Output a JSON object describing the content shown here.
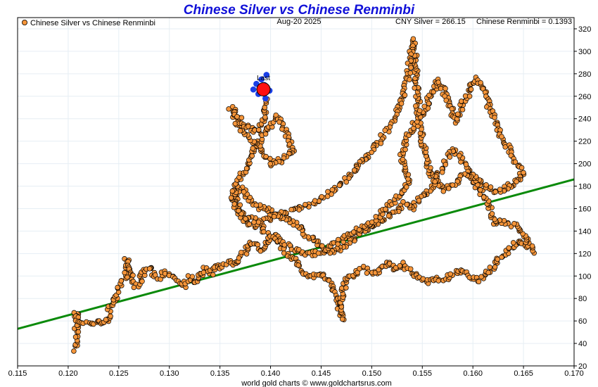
{
  "chart_data": {
    "type": "scatter",
    "title": "Chinese Silver vs Chinese Renminbi",
    "date": "Aug-20  2025",
    "legend": "Chinese Silver vs Chinese Renminbi",
    "legend_position": "top-left",
    "readouts": {
      "cny_silver": "CNY Silver = 266.15",
      "renminbi": "Chinese Renminbi = 0.1393"
    },
    "last_label": "Last",
    "footer": "world gold charts © www.goldchartsrus.com",
    "xlim": [
      0.115,
      0.17
    ],
    "ylim": [
      20,
      330
    ],
    "x_ticks": [
      "0.115",
      "0.120",
      "0.125",
      "0.130",
      "0.135",
      "0.140",
      "0.145",
      "0.150",
      "0.155",
      "0.160",
      "0.165",
      "0.170"
    ],
    "y_ticks": [
      "20",
      "40",
      "60",
      "80",
      "100",
      "120",
      "140",
      "160",
      "180",
      "200",
      "220",
      "240",
      "260",
      "280",
      "300",
      "320"
    ],
    "grid": true,
    "colors": {
      "points": "#f5953a",
      "point_edge": "#000000",
      "line": "#f5953a",
      "trend": "#0a8a0a",
      "recent": "#1a3fe6",
      "last": "#ff1010",
      "title": "#1010d8"
    },
    "trendline": {
      "x": [
        0.115,
        0.17
      ],
      "y": [
        53,
        186
      ]
    },
    "last_point": {
      "x": 0.1393,
      "y": 266.15
    },
    "recent_path": [
      [
        0.1395,
        258
      ],
      [
        0.1388,
        262
      ],
      [
        0.1383,
        266
      ],
      [
        0.1386,
        271
      ],
      [
        0.1391,
        275
      ],
      [
        0.1396,
        279
      ],
      [
        0.1394,
        270
      ],
      [
        0.1399,
        265
      ],
      [
        0.1393,
        266
      ]
    ],
    "path": [
      [
        0.1208,
        35
      ],
      [
        0.1208,
        45
      ],
      [
        0.1208,
        55
      ],
      [
        0.1208,
        63
      ],
      [
        0.1208,
        68
      ],
      [
        0.1208,
        58
      ],
      [
        0.1225,
        58
      ],
      [
        0.1233,
        60
      ],
      [
        0.1237,
        57
      ],
      [
        0.124,
        66
      ],
      [
        0.1243,
        74
      ],
      [
        0.1248,
        82
      ],
      [
        0.1251,
        91
      ],
      [
        0.1255,
        98
      ],
      [
        0.1258,
        107
      ],
      [
        0.1257,
        116
      ],
      [
        0.1262,
        100
      ],
      [
        0.1267,
        91
      ],
      [
        0.1272,
        97
      ],
      [
        0.1276,
        104
      ],
      [
        0.1281,
        108
      ],
      [
        0.1286,
        100
      ],
      [
        0.1291,
        97
      ],
      [
        0.1297,
        104
      ],
      [
        0.1303,
        100
      ],
      [
        0.1308,
        96
      ],
      [
        0.1314,
        92
      ],
      [
        0.132,
        99
      ],
      [
        0.1325,
        94
      ],
      [
        0.133,
        101
      ],
      [
        0.1336,
        106
      ],
      [
        0.1341,
        102
      ],
      [
        0.1346,
        110
      ],
      [
        0.1352,
        107
      ],
      [
        0.1357,
        112
      ],
      [
        0.1363,
        110
      ],
      [
        0.1368,
        116
      ],
      [
        0.1373,
        120
      ],
      [
        0.1378,
        125
      ],
      [
        0.1384,
        130
      ],
      [
        0.1391,
        122
      ],
      [
        0.1397,
        128
      ],
      [
        0.1404,
        136
      ],
      [
        0.1411,
        126
      ],
      [
        0.1418,
        118
      ],
      [
        0.1426,
        112
      ],
      [
        0.1432,
        103
      ],
      [
        0.144,
        99
      ],
      [
        0.1447,
        102
      ],
      [
        0.1452,
        100
      ],
      [
        0.1457,
        96
      ],
      [
        0.1462,
        92
      ],
      [
        0.1465,
        80
      ],
      [
        0.1468,
        70
      ],
      [
        0.1471,
        62
      ],
      [
        0.1468,
        75
      ],
      [
        0.1472,
        88
      ],
      [
        0.1477,
        100
      ],
      [
        0.1485,
        103
      ],
      [
        0.1493,
        107
      ],
      [
        0.1502,
        101
      ],
      [
        0.151,
        107
      ],
      [
        0.1517,
        113
      ],
      [
        0.1524,
        105
      ],
      [
        0.1531,
        110
      ],
      [
        0.1538,
        103
      ],
      [
        0.1546,
        99
      ],
      [
        0.1555,
        95
      ],
      [
        0.1564,
        99
      ],
      [
        0.1572,
        96
      ],
      [
        0.158,
        102
      ],
      [
        0.1589,
        106
      ],
      [
        0.1597,
        99
      ],
      [
        0.1606,
        96
      ],
      [
        0.1614,
        102
      ],
      [
        0.162,
        107
      ],
      [
        0.1626,
        115
      ],
      [
        0.1633,
        121
      ],
      [
        0.164,
        127
      ],
      [
        0.1646,
        132
      ],
      [
        0.1652,
        128
      ],
      [
        0.1659,
        122
      ],
      [
        0.1653,
        133
      ],
      [
        0.1646,
        142
      ],
      [
        0.1637,
        146
      ],
      [
        0.1629,
        149
      ],
      [
        0.1621,
        146
      ],
      [
        0.1618,
        156
      ],
      [
        0.1614,
        166
      ],
      [
        0.1607,
        176
      ],
      [
        0.16,
        186
      ],
      [
        0.1594,
        196
      ],
      [
        0.1588,
        206
      ],
      [
        0.1581,
        213
      ],
      [
        0.1574,
        203
      ],
      [
        0.1567,
        192
      ],
      [
        0.156,
        181
      ],
      [
        0.1553,
        172
      ],
      [
        0.1545,
        166
      ],
      [
        0.1538,
        160
      ],
      [
        0.1531,
        164
      ],
      [
        0.1523,
        157
      ],
      [
        0.1515,
        152
      ],
      [
        0.1508,
        148
      ],
      [
        0.1501,
        145
      ],
      [
        0.1494,
        141
      ],
      [
        0.1487,
        137
      ],
      [
        0.148,
        132
      ],
      [
        0.1473,
        127
      ],
      [
        0.1466,
        124
      ],
      [
        0.1459,
        121
      ],
      [
        0.1452,
        125
      ],
      [
        0.1445,
        130
      ],
      [
        0.1438,
        135
      ],
      [
        0.1431,
        141
      ],
      [
        0.1424,
        146
      ],
      [
        0.1417,
        151
      ],
      [
        0.141,
        153
      ],
      [
        0.1403,
        156
      ],
      [
        0.1396,
        159
      ],
      [
        0.1389,
        162
      ],
      [
        0.1382,
        166
      ],
      [
        0.1376,
        172
      ],
      [
        0.137,
        178
      ],
      [
        0.1365,
        172
      ],
      [
        0.1368,
        160
      ],
      [
        0.1374,
        150
      ],
      [
        0.1381,
        144
      ],
      [
        0.1388,
        148
      ],
      [
        0.1394,
        140
      ],
      [
        0.1401,
        134
      ],
      [
        0.1409,
        131
      ],
      [
        0.1416,
        128
      ],
      [
        0.1424,
        124
      ],
      [
        0.1433,
        121
      ],
      [
        0.1441,
        119
      ],
      [
        0.1449,
        122
      ],
      [
        0.1457,
        125
      ],
      [
        0.1465,
        129
      ],
      [
        0.1473,
        134
      ],
      [
        0.1481,
        138
      ],
      [
        0.1489,
        142
      ],
      [
        0.1497,
        147
      ],
      [
        0.1505,
        152
      ],
      [
        0.1512,
        158
      ],
      [
        0.1519,
        164
      ],
      [
        0.1526,
        170
      ],
      [
        0.1532,
        177
      ],
      [
        0.1536,
        184
      ],
      [
        0.1533,
        196
      ],
      [
        0.1529,
        208
      ],
      [
        0.1534,
        221
      ],
      [
        0.154,
        232
      ],
      [
        0.1547,
        241
      ],
      [
        0.1553,
        248
      ],
      [
        0.1557,
        258
      ],
      [
        0.1561,
        266
      ],
      [
        0.1566,
        275
      ],
      [
        0.1571,
        266
      ],
      [
        0.1575,
        257
      ],
      [
        0.1579,
        247
      ],
      [
        0.1583,
        238
      ],
      [
        0.1587,
        246
      ],
      [
        0.1591,
        256
      ],
      [
        0.1595,
        262
      ],
      [
        0.16,
        270
      ],
      [
        0.1604,
        276
      ],
      [
        0.1608,
        270
      ],
      [
        0.1612,
        262
      ],
      [
        0.1616,
        251
      ],
      [
        0.1621,
        240
      ],
      [
        0.1626,
        228
      ],
      [
        0.1632,
        219
      ],
      [
        0.1637,
        210
      ],
      [
        0.1642,
        203
      ],
      [
        0.1646,
        196
      ],
      [
        0.165,
        190
      ],
      [
        0.1644,
        185
      ],
      [
        0.1637,
        181
      ],
      [
        0.163,
        177
      ],
      [
        0.1622,
        174
      ],
      [
        0.1615,
        178
      ],
      [
        0.1608,
        183
      ],
      [
        0.1601,
        188
      ],
      [
        0.1594,
        192
      ],
      [
        0.1587,
        186
      ],
      [
        0.158,
        180
      ],
      [
        0.1572,
        176
      ],
      [
        0.1565,
        181
      ],
      [
        0.1559,
        190
      ],
      [
        0.1555,
        200
      ],
      [
        0.1552,
        212
      ],
      [
        0.1549,
        224
      ],
      [
        0.1547,
        236
      ],
      [
        0.1546,
        249
      ],
      [
        0.1545,
        262
      ],
      [
        0.1544,
        275
      ],
      [
        0.1543,
        288
      ],
      [
        0.1542,
        302
      ],
      [
        0.1541,
        310
      ],
      [
        0.154,
        301
      ],
      [
        0.1538,
        290
      ],
      [
        0.1536,
        278
      ],
      [
        0.1533,
        266
      ],
      [
        0.1529,
        255
      ],
      [
        0.1524,
        245
      ],
      [
        0.1519,
        236
      ],
      [
        0.1513,
        228
      ],
      [
        0.1507,
        220
      ],
      [
        0.15,
        212
      ],
      [
        0.1493,
        205
      ],
      [
        0.1485,
        197
      ],
      [
        0.1477,
        189
      ],
      [
        0.1469,
        182
      ],
      [
        0.1461,
        176
      ],
      [
        0.1453,
        171
      ],
      [
        0.1445,
        166
      ],
      [
        0.1437,
        163
      ],
      [
        0.1429,
        160
      ],
      [
        0.1421,
        158
      ],
      [
        0.1413,
        156
      ],
      [
        0.1405,
        153
      ],
      [
        0.1398,
        151
      ],
      [
        0.1391,
        150
      ],
      [
        0.1384,
        150
      ],
      [
        0.1377,
        152
      ],
      [
        0.1371,
        156
      ],
      [
        0.1366,
        162
      ],
      [
        0.1363,
        170
      ],
      [
        0.1365,
        179
      ],
      [
        0.137,
        187
      ],
      [
        0.1375,
        195
      ],
      [
        0.1379,
        203
      ],
      [
        0.1383,
        211
      ],
      [
        0.1387,
        218
      ],
      [
        0.1391,
        224
      ],
      [
        0.1395,
        229
      ],
      [
        0.1399,
        233
      ],
      [
        0.1403,
        238
      ],
      [
        0.1407,
        243
      ],
      [
        0.1411,
        235
      ],
      [
        0.1415,
        227
      ],
      [
        0.1419,
        220
      ],
      [
        0.1422,
        212
      ],
      [
        0.1416,
        207
      ],
      [
        0.1409,
        203
      ],
      [
        0.1402,
        199
      ],
      [
        0.1396,
        205
      ],
      [
        0.139,
        212
      ],
      [
        0.1384,
        218
      ],
      [
        0.1378,
        224
      ],
      [
        0.1372,
        230
      ],
      [
        0.1367,
        236
      ],
      [
        0.1363,
        243
      ],
      [
        0.1361,
        250
      ],
      [
        0.1365,
        244
      ],
      [
        0.1371,
        238
      ],
      [
        0.1378,
        233
      ],
      [
        0.1385,
        228
      ],
      [
        0.1391,
        235
      ],
      [
        0.1396,
        242
      ],
      [
        0.1393,
        252
      ],
      [
        0.1395,
        258
      ]
    ]
  }
}
